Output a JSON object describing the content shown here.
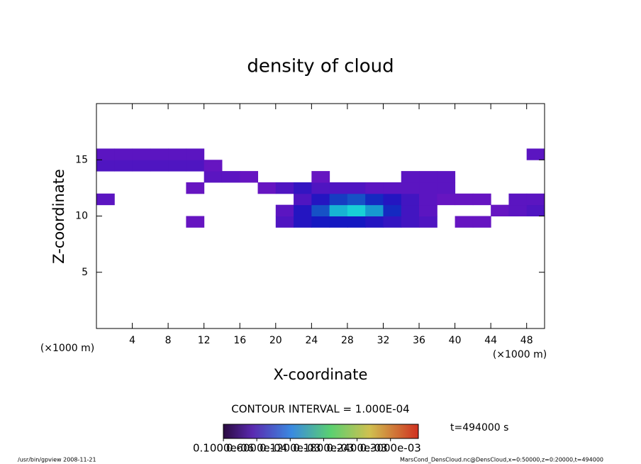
{
  "chart_data": {
    "type": "heatmap",
    "title": "density of cloud",
    "x_label": "X-coordinate",
    "y_label": "Z-coordinate",
    "x_unit": "(×1000 m)",
    "y_unit": "(×1000 m)",
    "x": [
      1,
      3,
      5,
      7,
      9,
      11,
      13,
      15,
      17,
      19,
      21,
      23,
      25,
      27,
      29,
      31,
      33,
      35,
      37,
      39,
      41,
      43,
      45,
      47,
      49
    ],
    "z": [
      9.5,
      10.5,
      11.5,
      12.5,
      13.5,
      14.5,
      15.5
    ],
    "values": [
      [
        null,
        null,
        null,
        null,
        null,
        3e-05,
        null,
        null,
        null,
        null,
        5e-05,
        8e-05,
        9e-05,
        9e-05,
        9e-05,
        8e-05,
        7e-05,
        6e-05,
        5e-05,
        null,
        3e-05,
        3e-05,
        null,
        null,
        null
      ],
      [
        null,
        null,
        null,
        null,
        null,
        null,
        null,
        null,
        null,
        null,
        4e-05,
        8e-05,
        0.00012,
        0.00016,
        0.00017,
        0.00015,
        0.0001,
        6e-05,
        4e-05,
        null,
        null,
        null,
        3e-05,
        4e-05,
        5e-05
      ],
      [
        4e-05,
        null,
        null,
        null,
        null,
        null,
        null,
        null,
        null,
        null,
        null,
        5e-05,
        8e-05,
        0.00011,
        0.00012,
        0.0001,
        8e-05,
        6e-05,
        4e-05,
        3e-05,
        3e-05,
        3e-05,
        null,
        4e-05,
        4e-05
      ],
      [
        null,
        null,
        null,
        null,
        null,
        3e-05,
        null,
        null,
        null,
        3e-05,
        5e-05,
        7e-05,
        5e-05,
        5e-05,
        5e-05,
        4e-05,
        4e-05,
        4e-05,
        4e-05,
        4e-05,
        null,
        null,
        null,
        null,
        null
      ],
      [
        null,
        null,
        null,
        null,
        null,
        null,
        4e-05,
        4e-05,
        3e-05,
        null,
        null,
        null,
        3e-05,
        null,
        null,
        null,
        null,
        4e-05,
        4e-05,
        4e-05,
        null,
        null,
        null,
        null,
        null
      ],
      [
        5e-05,
        5e-05,
        5e-05,
        5e-05,
        5e-05,
        5e-05,
        3e-05,
        null,
        null,
        null,
        null,
        null,
        null,
        null,
        null,
        null,
        null,
        null,
        null,
        null,
        null,
        null,
        null,
        null,
        null
      ],
      [
        4e-05,
        4e-05,
        4e-05,
        4e-05,
        4e-05,
        4e-05,
        null,
        null,
        null,
        null,
        null,
        null,
        null,
        null,
        null,
        null,
        null,
        null,
        null,
        null,
        null,
        null,
        null,
        null,
        4e-05
      ]
    ],
    "xlim": [
      0,
      50
    ],
    "ylim": [
      0,
      20
    ],
    "xticks": [
      4,
      8,
      12,
      16,
      20,
      24,
      28,
      32,
      36,
      40,
      44,
      48
    ],
    "yticks": [
      5,
      10,
      15
    ],
    "clim": [
      0,
      0.00035
    ],
    "cticks": [
      {
        "value": 1e-07,
        "label": "0.1000e-06"
      },
      {
        "value": 6e-05,
        "label": "0.6000e-04"
      },
      {
        "value": 0.00012,
        "label": "0.1200e-03"
      },
      {
        "value": 0.00018,
        "label": "0.1800e-03"
      },
      {
        "value": 0.00024,
        "label": "0.2400e-03"
      },
      {
        "value": 0.0003,
        "label": "0.3000e-03"
      }
    ],
    "contour_interval": "CONTOUR INTERVAL = 1.000E-04",
    "time_label": "t=494000 s",
    "footer_left": "/usr/bin/gpview   2008-11-21",
    "footer_right": "MarsCond_DensCloud.nc@DensCloud,x=0:50000,z=0:20000,t=494000"
  }
}
